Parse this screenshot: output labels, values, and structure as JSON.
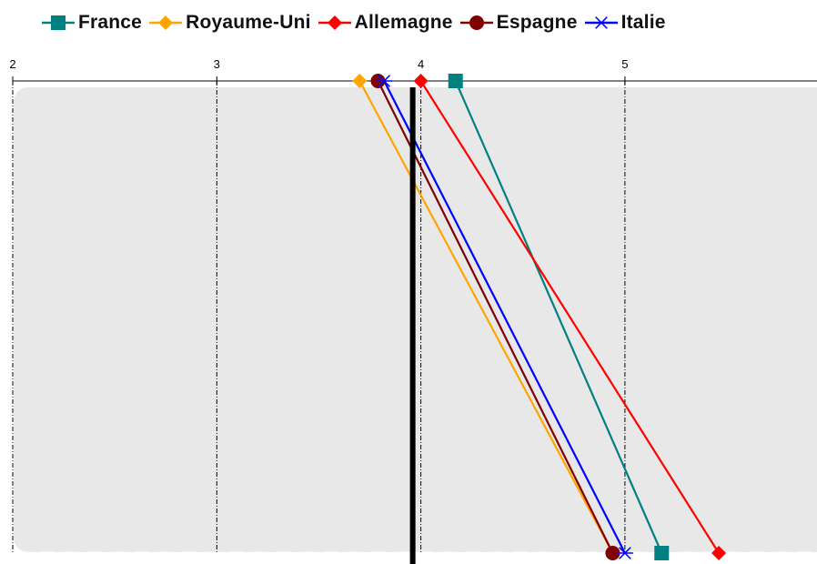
{
  "chart_data": {
    "type": "line",
    "title": "",
    "xlabel": "",
    "ylabel": "",
    "x_axis": {
      "position": "top",
      "range": [
        2,
        5.95
      ],
      "ticks": [
        {
          "value": 2,
          "label": "2"
        },
        {
          "value": 3,
          "label": "3"
        },
        {
          "value": 4,
          "label": "4"
        },
        {
          "value": 5,
          "label": "5"
        }
      ],
      "grid": "dash-dot vertical"
    },
    "y_axis": {
      "categories": [
        "top",
        "bottom"
      ],
      "labels_shown": false
    },
    "reference_line": {
      "x": 3.96,
      "color": "#000000"
    },
    "legend": {
      "placement": "top"
    },
    "series": [
      {
        "name": "France",
        "color": "#008080",
        "marker": "square",
        "values": [
          4.17,
          5.18
        ]
      },
      {
        "name": "Royaume-Uni",
        "color": "#FFA500",
        "marker": "diamond",
        "values": [
          3.7,
          4.94
        ]
      },
      {
        "name": "Allemagne",
        "color": "#FF0000",
        "marker": "diamond",
        "values": [
          4.0,
          5.46
        ]
      },
      {
        "name": "Espagne",
        "color": "#800000",
        "marker": "circle",
        "values": [
          3.79,
          4.94
        ]
      },
      {
        "name": "Italie",
        "color": "#0000FF",
        "marker": "asterisk",
        "values": [
          3.82,
          5.0
        ]
      }
    ],
    "plot_background": "#E8E8E8"
  }
}
